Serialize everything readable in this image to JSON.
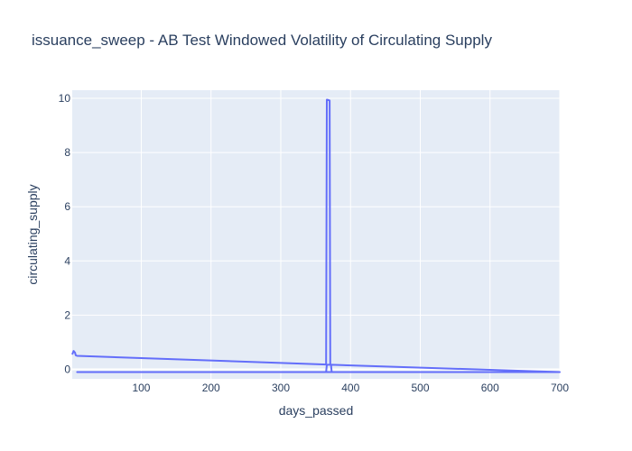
{
  "chart_data": {
    "type": "line",
    "title": "issuance_sweep - AB Test Windowed Volatility of Circulating Supply",
    "xlabel": "days_passed",
    "ylabel": "circulating_supply",
    "xlim": [
      1,
      700
    ],
    "ylim": [
      -0.35,
      10.3
    ],
    "x_ticks": [
      100,
      200,
      300,
      400,
      500,
      600,
      700
    ],
    "y_ticks": [
      0,
      2,
      4,
      6,
      8,
      10
    ],
    "grid": true,
    "legend": "none",
    "colors": {
      "line": "#636efa",
      "plot_bg": "#e5ecf6",
      "grid": "#ffffff",
      "text": "#2a3f5f"
    },
    "series": [
      {
        "x": [
          1,
          3,
          5,
          6,
          8,
          365,
          366,
          367,
          370,
          371,
          373,
          700,
          8,
          365,
          366,
          372,
          373,
          700
        ],
        "y": [
          0.55,
          0.68,
          0.62,
          0.52,
          0.5,
          0.18,
          9.95,
          9.95,
          9.92,
          0.17,
          0.17,
          -0.1,
          -0.1,
          -0.1,
          0.17,
          0.17,
          -0.1,
          -0.1
        ]
      }
    ]
  }
}
